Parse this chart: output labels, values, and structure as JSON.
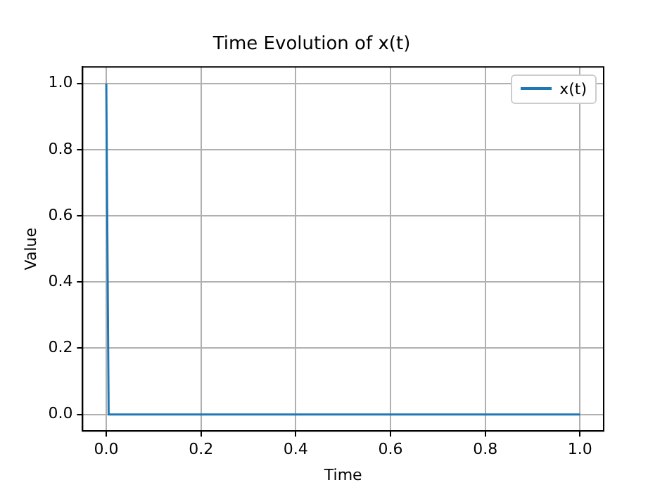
{
  "chart_data": {
    "type": "line",
    "title": "Time Evolution of x(t)",
    "xlabel": "Time",
    "ylabel": "Value",
    "series": [
      {
        "name": "x(t)",
        "color": "#1f77b4",
        "x": [
          0,
          0.005,
          1
        ],
        "values": [
          1,
          0,
          0
        ]
      }
    ],
    "xlim": [
      -0.05,
      1.05
    ],
    "ylim": [
      -0.05,
      1.05
    ],
    "xticks": [
      {
        "value": 0,
        "label": "0.0"
      },
      {
        "value": 0.2,
        "label": "0.2"
      },
      {
        "value": 0.4,
        "label": "0.4"
      },
      {
        "value": 0.6,
        "label": "0.6"
      },
      {
        "value": 0.8,
        "label": "0.8"
      },
      {
        "value": 1,
        "label": "1.0"
      }
    ],
    "yticks": [
      {
        "value": 0,
        "label": "0.0"
      },
      {
        "value": 0.2,
        "label": "0.2"
      },
      {
        "value": 0.4,
        "label": "0.4"
      },
      {
        "value": 0.6,
        "label": "0.6"
      },
      {
        "value": 0.8,
        "label": "0.8"
      },
      {
        "value": 1,
        "label": "1.0"
      }
    ],
    "grid": true,
    "legend": "top right",
    "line_style": "solid",
    "marker": "none"
  }
}
